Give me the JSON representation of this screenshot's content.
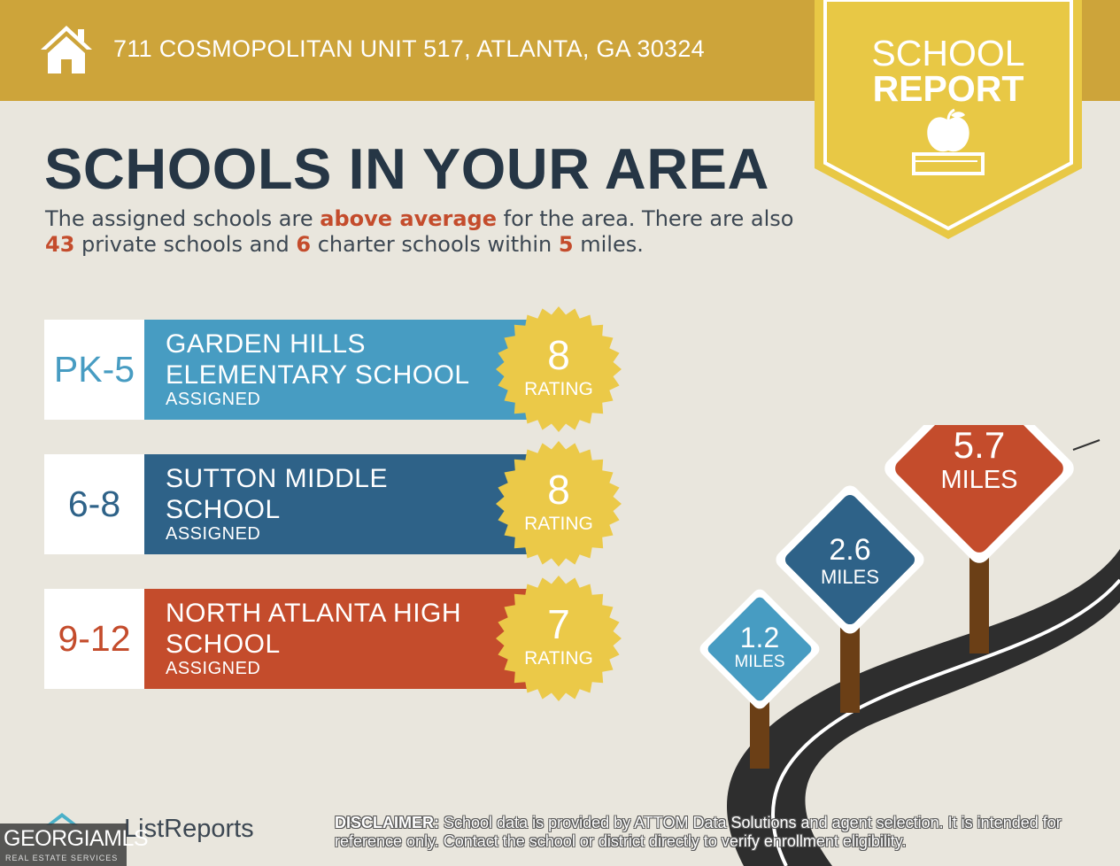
{
  "header": {
    "address": "711 COSMOPOLITAN UNIT 517, ATLANTA, GA 30324",
    "icon": "house-icon"
  },
  "badge": {
    "line1": "SCHOOL",
    "line2": "REPORT",
    "icon": "apple-on-book-icon"
  },
  "title": "SCHOOLS IN YOUR AREA",
  "intro": {
    "part1": "The assigned schools are ",
    "highlight1": "above average",
    "part2": " for the area. There are also ",
    "private_count": "43",
    "part3": " private schools and ",
    "charter_count": "6",
    "part4": " charter schools within ",
    "radius": "5",
    "part5": " miles."
  },
  "schools": [
    {
      "grades": "PK-5",
      "name_line1": "GARDEN HILLS",
      "name_line2": "ELEMENTARY SCHOOL",
      "status": "ASSIGNED",
      "rating": "8",
      "rating_label": "RATING",
      "color": "#479cc2"
    },
    {
      "grades": "6-8",
      "name_line1": "SUTTON MIDDLE",
      "name_line2": "SCHOOL",
      "status": "ASSIGNED",
      "rating": "8",
      "rating_label": "RATING",
      "color": "#2e6288"
    },
    {
      "grades": "9-12",
      "name_line1": "NORTH ATLANTA HIGH",
      "name_line2": "SCHOOL",
      "status": "ASSIGNED",
      "rating": "7",
      "rating_label": "RATING",
      "color": "#c44c2c"
    }
  ],
  "distances": [
    {
      "value": "1.2",
      "unit": "MILES",
      "color": "#479cc2"
    },
    {
      "value": "2.6",
      "unit": "MILES",
      "color": "#2e6288"
    },
    {
      "value": "5.7",
      "unit": "MILES",
      "color": "#c44c2c"
    }
  ],
  "footer": {
    "brand": "ListReports",
    "mls_main": "GEORGIAMLS",
    "mls_sub": "REAL ESTATE SERVICES",
    "disclaimer_label": "DISCLAIMER:",
    "disclaimer_text": " School data is provided by ATTOM Data Solutions and agent selection. It is intended for reference only. Contact the school or district directly to verify enrollment eligibility."
  },
  "colors": {
    "gold": "#cda43a",
    "badge": "#e8c845",
    "seal": "#ebc948",
    "navy_text": "#263645",
    "accent": "#c44c2c"
  }
}
